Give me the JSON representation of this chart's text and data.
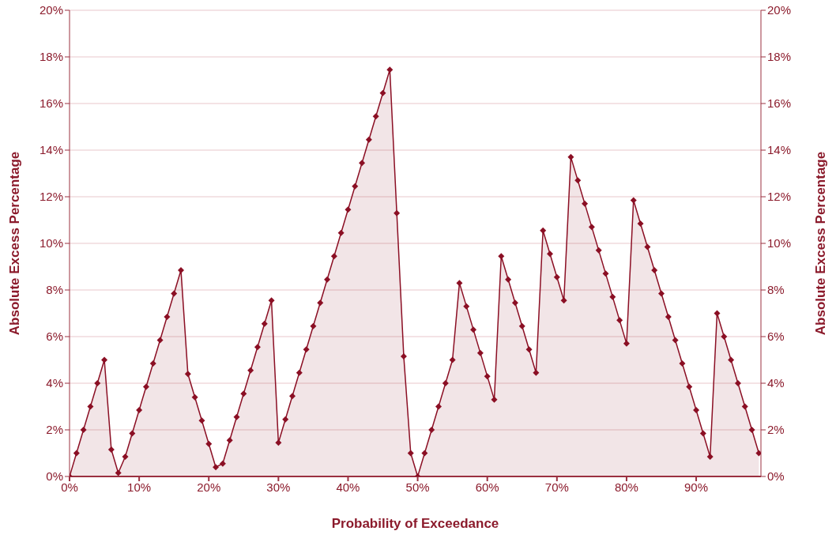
{
  "chart_data": {
    "type": "area",
    "xlabel": "Probability of Exceedance",
    "ylabel": "Absolute Excess Percentage",
    "y2label": "Absolute Excess Percentage",
    "x": [
      0,
      1,
      2,
      3,
      4,
      5,
      6,
      7,
      8,
      9,
      10,
      11,
      12,
      13,
      14,
      15,
      16,
      17,
      18,
      19,
      20,
      21,
      22,
      23,
      24,
      25,
      26,
      27,
      28,
      29,
      30,
      31,
      32,
      33,
      34,
      35,
      36,
      37,
      38,
      39,
      40,
      41,
      42,
      43,
      44,
      45,
      46,
      47,
      48,
      49,
      50,
      51,
      52,
      53,
      54,
      55,
      56,
      57,
      58,
      59,
      60,
      61,
      62,
      63,
      64,
      65,
      66,
      67,
      68,
      69,
      70,
      71,
      72,
      73,
      74,
      75,
      76,
      77,
      78,
      79,
      80,
      81,
      82,
      83,
      84,
      85,
      86,
      87,
      88,
      89,
      90,
      91,
      92,
      93,
      94,
      95,
      96,
      97,
      98,
      99
    ],
    "series": [
      {
        "color": "#8b0f24",
        "values": [
          0,
          1.0,
          2.0,
          3.0,
          4.0,
          5.0,
          1.15,
          0.15,
          0.85,
          1.85,
          2.85,
          3.85,
          4.85,
          5.85,
          6.85,
          7.85,
          8.85,
          4.4,
          3.4,
          2.4,
          1.4,
          0.4,
          0.55,
          1.55,
          2.55,
          3.55,
          4.55,
          5.55,
          6.55,
          7.55,
          1.45,
          2.45,
          3.45,
          4.45,
          5.45,
          6.45,
          7.45,
          8.45,
          9.45,
          10.45,
          11.45,
          12.45,
          13.45,
          14.45,
          15.45,
          16.45,
          17.45,
          11.3,
          5.15,
          1.0,
          0,
          1.0,
          2.0,
          3.0,
          4.0,
          5.0,
          8.3,
          7.3,
          6.3,
          5.3,
          4.3,
          3.3,
          9.45,
          8.45,
          7.45,
          6.45,
          5.45,
          4.45,
          10.55,
          9.55,
          8.55,
          7.55,
          13.7,
          12.7,
          11.7,
          10.7,
          9.7,
          8.7,
          7.7,
          6.7,
          5.7,
          11.85,
          10.85,
          9.85,
          8.85,
          7.85,
          6.85,
          5.85,
          4.85,
          3.85,
          2.85,
          1.85,
          0.85,
          7.0,
          6.0,
          5.0,
          4.0,
          3.0,
          2.0,
          1.0
        ]
      }
    ],
    "xlim": [
      0,
      99.3
    ],
    "xticks": [
      {
        "value": 0,
        "label": "0%"
      },
      {
        "value": 10,
        "label": "10%"
      },
      {
        "value": 20,
        "label": "20%"
      },
      {
        "value": 30,
        "label": "30%"
      },
      {
        "value": 40,
        "label": "40%"
      },
      {
        "value": 50,
        "label": "50%"
      },
      {
        "value": 60,
        "label": "60%"
      },
      {
        "value": 70,
        "label": "70%"
      },
      {
        "value": 80,
        "label": "80%"
      },
      {
        "value": 90,
        "label": "90%"
      }
    ],
    "ylim": [
      0,
      20
    ],
    "yticks": [
      {
        "value": 0,
        "label": "0%"
      },
      {
        "value": 2,
        "label": "2%"
      },
      {
        "value": 4,
        "label": "4%"
      },
      {
        "value": 6,
        "label": "6%"
      },
      {
        "value": 8,
        "label": "8%"
      },
      {
        "value": 10,
        "label": "10%"
      },
      {
        "value": 12,
        "label": "12%"
      },
      {
        "value": 14,
        "label": "14%"
      },
      {
        "value": 16,
        "label": "16%"
      },
      {
        "value": 18,
        "label": "18%"
      },
      {
        "value": 20,
        "label": "20%"
      }
    ],
    "y2lim": [
      0,
      20
    ],
    "y2ticks": [
      {
        "value": 0,
        "label": "0%"
      },
      {
        "value": 2,
        "label": "2%"
      },
      {
        "value": 4,
        "label": "4%"
      },
      {
        "value": 6,
        "label": "6%"
      },
      {
        "value": 8,
        "label": "8%"
      },
      {
        "value": 10,
        "label": "10%"
      },
      {
        "value": 12,
        "label": "12%"
      },
      {
        "value": 14,
        "label": "14%"
      },
      {
        "value": 16,
        "label": "16%"
      },
      {
        "value": 18,
        "label": "18%"
      },
      {
        "value": 20,
        "label": "20%"
      }
    ],
    "grid": "y",
    "marker": "diamond",
    "line_style": "solid"
  }
}
